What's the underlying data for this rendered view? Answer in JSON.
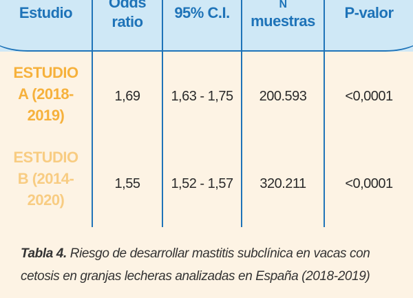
{
  "table": {
    "headers": {
      "study": "Estudio",
      "odds_ratio": [
        "Odds",
        "ratio"
      ],
      "ci": "95% C.I.",
      "n_samples": [
        "N",
        "muestras"
      ],
      "p_value": "P-valor"
    },
    "rows": [
      {
        "label": [
          "ESTUDIO",
          "A (2018-",
          "2019)"
        ],
        "odds_ratio": "1,69",
        "ci": "1,63 - 1,75",
        "n_samples": "200.593",
        "p_value": "<0,0001"
      },
      {
        "label": [
          "ESTUDIO",
          "B (2014-",
          "2020)"
        ],
        "odds_ratio": "1,55",
        "ci": "1,52 - 1,57",
        "n_samples": "320.211",
        "p_value": "<0,0001"
      }
    ]
  },
  "caption": {
    "title": "Tabla 4.",
    "text": "Riesgo de desarrollar mastitis subclínica en vacas con cetosis en granjas lecheras analizadas en España (2018-2019)"
  },
  "colors": {
    "header_bg": "#cfe8f6",
    "rule": "#1e73b8",
    "label_a": "#f6b13c",
    "label_b": "#f8cc82",
    "page_bg": "#fdf3e4"
  }
}
